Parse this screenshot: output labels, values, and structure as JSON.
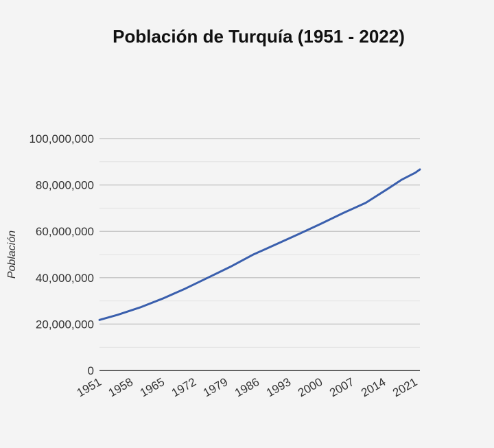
{
  "chart_data": {
    "type": "line",
    "title": "Población de Turquía (1951 - 2022)",
    "xlabel": "",
    "ylabel": "Población",
    "ylim": [
      0,
      100000000
    ],
    "yticks": [
      0,
      20000000,
      40000000,
      60000000,
      80000000,
      100000000
    ],
    "ytick_labels": [
      "0",
      "20,000,000",
      "40,000,000",
      "60,000,000",
      "80,000,000",
      "100,000,000"
    ],
    "xticks": [
      1951,
      1958,
      1965,
      1972,
      1979,
      1986,
      1993,
      2000,
      2007,
      2014,
      2021
    ],
    "xtick_labels": [
      "1951",
      "1958",
      "1965",
      "1972",
      "1979",
      "1986",
      "1993",
      "2000",
      "2007",
      "2014",
      "2021"
    ],
    "xlim": [
      1951,
      2022
    ],
    "grid": true,
    "line_color": "#3a5fad",
    "series": [
      {
        "x": [
          1951,
          1955,
          1960,
          1965,
          1970,
          1975,
          1980,
          1985,
          1990,
          1995,
          2000,
          2005,
          2010,
          2015,
          2018,
          2020,
          2021,
          2022
        ],
        "values": [
          21800000,
          24000000,
          27200000,
          31000000,
          35300000,
          40000000,
          44700000,
          49900000,
          54300000,
          58700000,
          63200000,
          67900000,
          72300000,
          78500000,
          82300000,
          84300000,
          85300000,
          86700000
        ]
      }
    ]
  }
}
